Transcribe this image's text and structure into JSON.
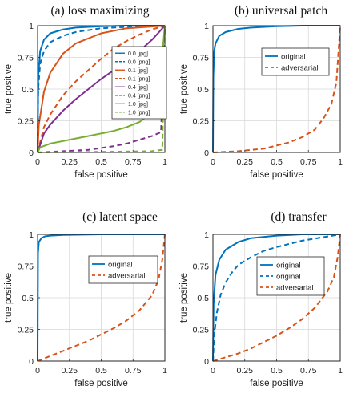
{
  "chart_data": [
    {
      "type": "line",
      "title": "(a) loss maximizing",
      "xlabel": "false positive",
      "ylabel": "true positive",
      "xlim": [
        0,
        1
      ],
      "ylim": [
        0,
        1
      ],
      "xticks": [
        "0",
        "0.25",
        "0.5",
        "0.75",
        "1"
      ],
      "yticks": [
        "0",
        "0.25",
        "0.5",
        "0.75",
        "1"
      ],
      "grid": true,
      "legend_position": "right",
      "series": [
        {
          "name": "0.0 [jpg]",
          "color": "#0072BD",
          "dash": "solid",
          "x": [
            0,
            0.005,
            0.02,
            0.05,
            0.1,
            0.2,
            0.3,
            0.5,
            0.7,
            1
          ],
          "y": [
            0,
            0.6,
            0.8,
            0.89,
            0.94,
            0.97,
            0.985,
            0.995,
            1,
            1
          ]
        },
        {
          "name": "0.0 [png]",
          "color": "#0072BD",
          "dash": "dashed",
          "x": [
            0,
            0.005,
            0.02,
            0.05,
            0.1,
            0.2,
            0.3,
            0.5,
            0.7,
            1
          ],
          "y": [
            0,
            0.5,
            0.7,
            0.8,
            0.87,
            0.92,
            0.95,
            0.98,
            0.99,
            1
          ]
        },
        {
          "name": "0.1 [jpg]",
          "color": "#D95319",
          "dash": "solid",
          "x": [
            0,
            0.01,
            0.05,
            0.1,
            0.2,
            0.3,
            0.5,
            0.7,
            0.85,
            1
          ],
          "y": [
            0,
            0.22,
            0.48,
            0.63,
            0.78,
            0.86,
            0.94,
            0.98,
            0.99,
            1
          ]
        },
        {
          "name": "0.1 [png]",
          "color": "#D95319",
          "dash": "dashed",
          "x": [
            0,
            0.05,
            0.1,
            0.2,
            0.3,
            0.4,
            0.5,
            0.6,
            0.7,
            0.8,
            0.9,
            1
          ],
          "y": [
            0,
            0.2,
            0.3,
            0.45,
            0.56,
            0.65,
            0.74,
            0.82,
            0.88,
            0.93,
            0.97,
            1
          ]
        },
        {
          "name": "0.4 [jpg]",
          "color": "#7E2F8E",
          "dash": "solid",
          "x": [
            0,
            0.05,
            0.1,
            0.2,
            0.3,
            0.4,
            0.5,
            0.6,
            0.7,
            0.8,
            0.9,
            1
          ],
          "y": [
            0,
            0.15,
            0.22,
            0.33,
            0.42,
            0.5,
            0.58,
            0.65,
            0.73,
            0.8,
            0.89,
            1
          ]
        },
        {
          "name": "0.4 [png]",
          "color": "#7E2F8E",
          "dash": "dashed",
          "x": [
            0,
            0.2,
            0.4,
            0.6,
            0.7,
            0.8,
            0.9,
            0.97,
            1
          ],
          "y": [
            0,
            0.01,
            0.02,
            0.05,
            0.07,
            0.1,
            0.13,
            0.16,
            1
          ]
        },
        {
          "name": "1.0 [jpg]",
          "color": "#77AC30",
          "dash": "solid",
          "x": [
            0,
            0.02,
            0.1,
            0.2,
            0.3,
            0.4,
            0.5,
            0.6,
            0.7,
            0.8,
            0.88,
            0.95,
            1
          ],
          "y": [
            0,
            0.04,
            0.07,
            0.09,
            0.11,
            0.13,
            0.15,
            0.17,
            0.2,
            0.24,
            0.3,
            0.42,
            1
          ]
        },
        {
          "name": "1.0 [png]",
          "color": "#77AC30",
          "dash": "dashed",
          "x": [
            0,
            0.5,
            0.9,
            0.98,
            1
          ],
          "y": [
            0,
            0.005,
            0.01,
            0.02,
            1
          ]
        }
      ]
    },
    {
      "type": "line",
      "title": "(b) universal patch",
      "xlabel": "false positive",
      "ylabel": "true positive",
      "xlim": [
        0,
        1
      ],
      "ylim": [
        0,
        1
      ],
      "xticks": [
        "0",
        "0.25",
        "0.5",
        "0.75",
        "1"
      ],
      "yticks": [
        "0",
        "0.25",
        "0.5",
        "0.75",
        "1"
      ],
      "grid": true,
      "legend_position": "top-right",
      "series": [
        {
          "name": "original",
          "color": "#0072BD",
          "dash": "solid",
          "x": [
            0,
            0.003,
            0.01,
            0.02,
            0.05,
            0.1,
            0.2,
            0.3,
            0.5,
            0.7,
            1
          ],
          "y": [
            0,
            0.6,
            0.8,
            0.86,
            0.92,
            0.95,
            0.975,
            0.985,
            0.995,
            1,
            1
          ]
        },
        {
          "name": "adversarial",
          "color": "#D95319",
          "dash": "dashed",
          "x": [
            0,
            0.2,
            0.4,
            0.6,
            0.7,
            0.8,
            0.87,
            0.93,
            0.97,
            1
          ],
          "y": [
            0,
            0.01,
            0.03,
            0.08,
            0.12,
            0.18,
            0.27,
            0.38,
            0.55,
            1
          ]
        }
      ]
    },
    {
      "type": "line",
      "title": "(c) latent space",
      "xlabel": "false positive",
      "ylabel": "true positive",
      "xlim": [
        0,
        1
      ],
      "ylim": [
        0,
        1
      ],
      "xticks": [
        "0",
        "0.25",
        "0.5",
        "0.75",
        "1"
      ],
      "yticks": [
        "0",
        "0.25",
        "0.5",
        "0.75",
        "1"
      ],
      "grid": true,
      "legend_position": "top-right",
      "series": [
        {
          "name": "original",
          "color": "#0072BD",
          "dash": "solid",
          "x": [
            0,
            0.003,
            0.01,
            0.03,
            0.06,
            0.1,
            0.2,
            0.5,
            1
          ],
          "y": [
            0,
            0.85,
            0.94,
            0.97,
            0.985,
            0.99,
            0.995,
            1,
            1
          ]
        },
        {
          "name": "adversarial",
          "color": "#D95319",
          "dash": "dashed",
          "x": [
            0,
            0.1,
            0.2,
            0.3,
            0.4,
            0.5,
            0.6,
            0.7,
            0.8,
            0.9,
            0.95,
            0.98,
            1
          ],
          "y": [
            0,
            0.04,
            0.08,
            0.12,
            0.16,
            0.21,
            0.26,
            0.32,
            0.4,
            0.52,
            0.64,
            0.8,
            1
          ]
        }
      ]
    },
    {
      "type": "line",
      "title": "(d) transfer",
      "xlabel": "false positive",
      "ylabel": "true positive",
      "xlim": [
        0,
        1
      ],
      "ylim": [
        0,
        1
      ],
      "xticks": [
        "0",
        "0.25",
        "0.5",
        "0.75",
        "1"
      ],
      "yticks": [
        "0",
        "0.25",
        "0.5",
        "0.75",
        "1"
      ],
      "grid": true,
      "legend_position": "right",
      "series": [
        {
          "name": "original",
          "color": "#0072BD",
          "dash": "solid",
          "x": [
            0,
            0.005,
            0.02,
            0.05,
            0.1,
            0.2,
            0.3,
            0.5,
            0.7,
            1
          ],
          "y": [
            0,
            0.45,
            0.68,
            0.8,
            0.88,
            0.94,
            0.97,
            0.99,
            1,
            1
          ]
        },
        {
          "name": "original",
          "color": "#0072BD",
          "dash": "dashed",
          "x": [
            0,
            0.01,
            0.03,
            0.06,
            0.1,
            0.15,
            0.2,
            0.3,
            0.4,
            0.5,
            0.7,
            1
          ],
          "y": [
            0,
            0.2,
            0.38,
            0.52,
            0.62,
            0.7,
            0.76,
            0.82,
            0.87,
            0.9,
            0.95,
            1
          ]
        },
        {
          "name": "adversarial",
          "color": "#D95319",
          "dash": "dashed",
          "x": [
            0,
            0.1,
            0.2,
            0.3,
            0.4,
            0.5,
            0.6,
            0.7,
            0.8,
            0.9,
            0.95,
            0.98,
            1
          ],
          "y": [
            0,
            0.03,
            0.06,
            0.1,
            0.15,
            0.2,
            0.26,
            0.33,
            0.42,
            0.55,
            0.66,
            0.82,
            1
          ]
        }
      ]
    }
  ]
}
